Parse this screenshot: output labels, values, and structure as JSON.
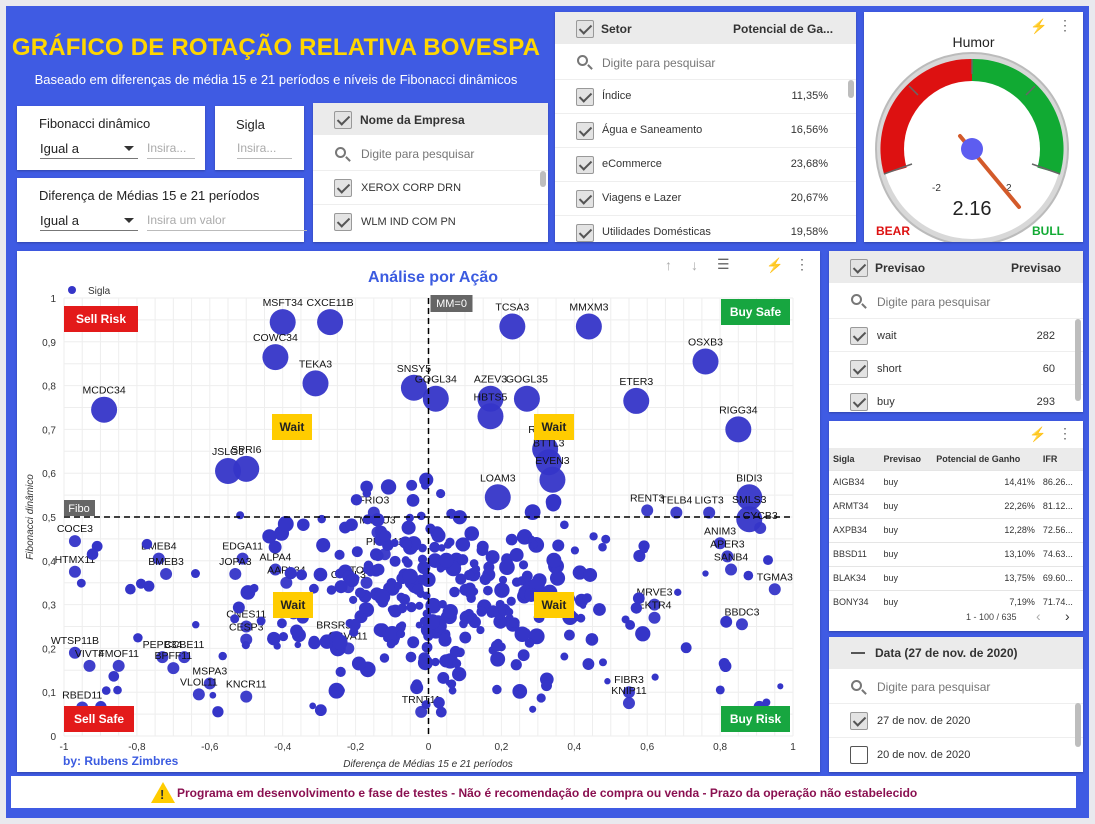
{
  "header": {
    "title": "GRÁFICO DE ROTAÇÃO RELATIVA BOVESPA",
    "subtitle": "Baseado em diferenças de média 15 e 21 períodos e níveis de Fibonacci dinâmicos"
  },
  "filters": {
    "fib": {
      "label": "Fibonacci dinâmico",
      "op": "Igual a",
      "placeholder": "Insira..."
    },
    "sigla": {
      "label": "Sigla",
      "placeholder": "Insira..."
    },
    "diff": {
      "label": "Diferença de Médias 15 e 21 períodos",
      "op": "Igual a",
      "placeholder": "Insira um valor"
    }
  },
  "empresa": {
    "header": "Nome da Empresa",
    "search": "Digite para pesquisar",
    "items": [
      "XEROX CORP DRN",
      "WLM IND COM PN"
    ]
  },
  "setor": {
    "header": "Setor",
    "header_val": "Potencial de Ga...",
    "search": "Digite para pesquisar",
    "items": [
      {
        "label": "Índice",
        "value": "11,35%"
      },
      {
        "label": "Água e Saneamento",
        "value": "16,56%"
      },
      {
        "label": "eCommerce",
        "value": "23,68%"
      },
      {
        "label": "Viagens e Lazer",
        "value": "20,67%"
      },
      {
        "label": "Utilidades Domésticas",
        "value": "19,58%"
      }
    ]
  },
  "humor": {
    "title": "Humor",
    "value": "2.16",
    "value_num": 2.16,
    "min_label": "-2",
    "max_label": "2",
    "bear": "BEAR",
    "bull": "BULL"
  },
  "previsao": {
    "header": "Previsao",
    "header_val": "Previsao",
    "search": "Digite para pesquisar",
    "items": [
      {
        "label": "wait",
        "value": "282"
      },
      {
        "label": "short",
        "value": "60"
      },
      {
        "label": "buy",
        "value": "293"
      }
    ]
  },
  "table": {
    "cols": [
      "Sigla",
      "Previsao",
      "Potencial de Ganho",
      "IFR"
    ],
    "rows": [
      [
        "AIGB34",
        "buy",
        "14,41%",
        "86.26..."
      ],
      [
        "ARMT34",
        "buy",
        "22,26%",
        "81.12..."
      ],
      [
        "AXPB34",
        "buy",
        "12,28%",
        "72.56..."
      ],
      [
        "BBSD11",
        "buy",
        "13,10%",
        "74.63..."
      ],
      [
        "BLAK34",
        "buy",
        "13,75%",
        "69.60..."
      ],
      [
        "BONY34",
        "buy",
        "7,19%",
        "71.74..."
      ]
    ],
    "pager": "1 - 100 / 635"
  },
  "data": {
    "header": "Data (27 de nov. de 2020)",
    "search": "Digite para pesquisar",
    "items": [
      "27 de nov. de 2020",
      "20 de nov. de 2020"
    ]
  },
  "footer": {
    "message": "Programa em desenvolvimento e fase de testes - Não é recomendação de compra ou venda - Prazo da operação não estabelecido",
    "warn": "!"
  },
  "chart_data": {
    "type": "scatter",
    "title": "Análise por Ação",
    "xlabel": "Diferença de Médias 15 e 21 períodos",
    "ylabel": "Fibonacci dinâmico",
    "legend": "Sigla",
    "author": "by: Rubens Zimbres",
    "xlim": [
      -1,
      1
    ],
    "ylim": [
      0,
      1
    ],
    "xticks": [
      "-1",
      "-0,8",
      "-0,6",
      "-0,4",
      "-0,2",
      "0",
      "0,2",
      "0,4",
      "0,6",
      "0,8",
      "1"
    ],
    "yticks": [
      "0",
      "0,1",
      "0,2",
      "0,3",
      "0,4",
      "0,5",
      "0,6",
      "0,7",
      "0,8",
      "0,9",
      "1"
    ],
    "ref_x_label": "MM=0",
    "ref_y_label": "Fibo",
    "ref_y": 0.5,
    "zones": {
      "sell_risk": "Sell Risk",
      "buy_safe": "Buy Safe",
      "sell_safe": "Sell Safe",
      "buy_risk": "Buy Risk",
      "wait": "Wait"
    },
    "color": "#3535c8",
    "points": [
      {
        "label": "MSFT34",
        "x": -0.4,
        "y": 0.945,
        "s": 2
      },
      {
        "label": "CXCE11B",
        "x": -0.27,
        "y": 0.945,
        "s": 2
      },
      {
        "label": "TCSA3",
        "x": 0.23,
        "y": 0.935,
        "s": 2
      },
      {
        "label": "MMXM3",
        "x": 0.44,
        "y": 0.935,
        "s": 2
      },
      {
        "label": "COWC34",
        "x": -0.42,
        "y": 0.865,
        "s": 2
      },
      {
        "label": "OSXB3",
        "x": 0.76,
        "y": 0.855,
        "s": 2
      },
      {
        "label": "TEKA3",
        "x": -0.31,
        "y": 0.805,
        "s": 2
      },
      {
        "label": "SNSY5",
        "x": -0.04,
        "y": 0.795,
        "s": 2
      },
      {
        "label": "GOGL34",
        "x": 0.02,
        "y": 0.77,
        "s": 2
      },
      {
        "label": "AZEV3",
        "x": 0.17,
        "y": 0.77,
        "s": 2
      },
      {
        "label": "GOGL35",
        "x": 0.27,
        "y": 0.77,
        "s": 2
      },
      {
        "label": "ETER3",
        "x": 0.57,
        "y": 0.765,
        "s": 2
      },
      {
        "label": "HBTS5",
        "x": 0.17,
        "y": 0.73,
        "s": 2
      },
      {
        "label": "RIGG34",
        "x": 0.85,
        "y": 0.7,
        "s": 2
      },
      {
        "label": "RCSL3",
        "x": 0.32,
        "y": 0.655,
        "s": 2
      },
      {
        "label": "BTTL3",
        "x": 0.33,
        "y": 0.625,
        "s": 2
      },
      {
        "label": "JSLG3",
        "x": -0.55,
        "y": 0.605,
        "s": 2
      },
      {
        "label": "SPRI6",
        "x": -0.5,
        "y": 0.61,
        "s": 2
      },
      {
        "label": "EVEN3",
        "x": 0.34,
        "y": 0.585,
        "s": 2
      },
      {
        "label": "LOAM3",
        "x": 0.19,
        "y": 0.545,
        "s": 2
      },
      {
        "label": "BIDI3",
        "x": 0.88,
        "y": 0.545,
        "s": 2
      },
      {
        "label": "SMLS3",
        "x": 0.88,
        "y": 0.495,
        "s": 2
      },
      {
        "label": "MCDC34",
        "x": -0.89,
        "y": 0.745,
        "s": 2
      },
      {
        "label": "COCE3",
        "x": -0.97,
        "y": 0.445,
        "s": 1
      },
      {
        "label": "HTMX11",
        "x": -0.97,
        "y": 0.375,
        "s": 1
      },
      {
        "label": "BMEB4",
        "x": -0.74,
        "y": 0.405,
        "s": 1
      },
      {
        "label": "BMEB3",
        "x": -0.72,
        "y": 0.37,
        "s": 1
      },
      {
        "label": "EDGA11",
        "x": -0.51,
        "y": 0.405,
        "s": 1
      },
      {
        "label": "JOPA3",
        "x": -0.53,
        "y": 0.37,
        "s": 1
      },
      {
        "label": "ALPA4",
        "x": -0.42,
        "y": 0.38,
        "s": 1
      },
      {
        "label": "AAPL34",
        "x": -0.39,
        "y": 0.35,
        "s": 1
      },
      {
        "label": "NIKE34",
        "x": -0.37,
        "y": 0.28,
        "s": 1
      },
      {
        "label": "CNES11",
        "x": -0.5,
        "y": 0.25,
        "s": 1
      },
      {
        "label": "CESP3",
        "x": -0.5,
        "y": 0.22,
        "s": 1
      },
      {
        "label": "WTSP11B",
        "x": -0.97,
        "y": 0.19,
        "s": 1
      },
      {
        "label": "VIVT4",
        "x": -0.93,
        "y": 0.16,
        "s": 1
      },
      {
        "label": "FMOF11",
        "x": -0.85,
        "y": 0.16,
        "s": 1
      },
      {
        "label": "PEPB34",
        "x": -0.73,
        "y": 0.18,
        "s": 1
      },
      {
        "label": "CCBE11",
        "x": -0.67,
        "y": 0.18,
        "s": 1
      },
      {
        "label": "BPFF11",
        "x": -0.7,
        "y": 0.155,
        "s": 1
      },
      {
        "label": "MSPA3",
        "x": -0.6,
        "y": 0.12,
        "s": 1
      },
      {
        "label": "VLOL11",
        "x": -0.63,
        "y": 0.095,
        "s": 1
      },
      {
        "label": "KNCR11",
        "x": -0.5,
        "y": 0.09,
        "s": 1
      },
      {
        "label": "RBED11",
        "x": -0.95,
        "y": 0.065,
        "s": 1
      },
      {
        "label": "BRSR5",
        "x": -0.26,
        "y": 0.225,
        "s": 1
      },
      {
        "label": "RBVA11",
        "x": -0.22,
        "y": 0.2,
        "s": 1
      },
      {
        "label": "TOTS3",
        "x": -0.17,
        "y": 0.35,
        "s": 1
      },
      {
        "label": "CAML3",
        "x": -0.22,
        "y": 0.34,
        "s": 1
      },
      {
        "label": "FRIO3",
        "x": -0.15,
        "y": 0.51,
        "s": 1
      },
      {
        "label": "MGLU3",
        "x": -0.14,
        "y": 0.465,
        "s": 1
      },
      {
        "label": "PPLA11",
        "x": -0.12,
        "y": 0.415,
        "s": 1
      },
      {
        "label": "RENT3",
        "x": 0.6,
        "y": 0.515,
        "s": 1
      },
      {
        "label": "TELB4",
        "x": 0.68,
        "y": 0.51,
        "s": 1
      },
      {
        "label": "LIGT3",
        "x": 0.77,
        "y": 0.51,
        "s": 1
      },
      {
        "label": "CYCB3",
        "x": 0.91,
        "y": 0.475,
        "s": 1
      },
      {
        "label": "ANIM3",
        "x": 0.8,
        "y": 0.44,
        "s": 1
      },
      {
        "label": "APER3",
        "x": 0.82,
        "y": 0.41,
        "s": 1
      },
      {
        "label": "SANB4",
        "x": 0.83,
        "y": 0.38,
        "s": 1
      },
      {
        "label": "TGMA3",
        "x": 0.95,
        "y": 0.335,
        "s": 1
      },
      {
        "label": "MRVE3",
        "x": 0.62,
        "y": 0.3,
        "s": 1
      },
      {
        "label": "EKTR4",
        "x": 0.62,
        "y": 0.27,
        "s": 1
      },
      {
        "label": "BBDC3",
        "x": 0.86,
        "y": 0.255,
        "s": 1
      },
      {
        "label": "FIBR3",
        "x": 0.55,
        "y": 0.1,
        "s": 1
      },
      {
        "label": "KNIP11",
        "x": 0.55,
        "y": 0.075,
        "s": 1
      },
      {
        "label": "TRNT11",
        "x": -0.02,
        "y": 0.055,
        "s": 1
      }
    ]
  }
}
